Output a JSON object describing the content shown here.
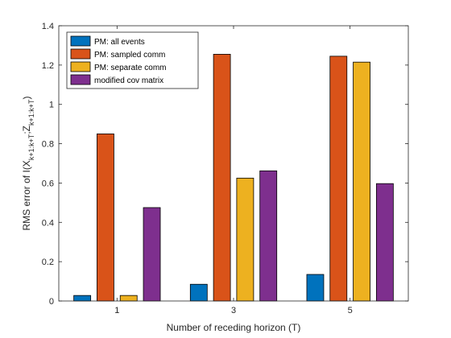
{
  "chart_data": {
    "type": "bar",
    "title": "",
    "xlabel": "Number of receding horizon (T)",
    "ylabel_parts": {
      "prefix": "RMS error of I(X",
      "sub1": "k+1:k+T",
      "mid": ";Z",
      "sub2": "k+1:k+T",
      "suffix": ")"
    },
    "categories": [
      "1",
      "3",
      "5"
    ],
    "ylim": [
      0,
      1.4
    ],
    "yticks": [
      "0",
      "0.2",
      "0.4",
      "0.6",
      "0.8",
      "1",
      "1.2",
      "1.4"
    ],
    "ytick_values": [
      0,
      0.2,
      0.4,
      0.6,
      0.8,
      1.0,
      1.2,
      1.4
    ],
    "grid": false,
    "legend_position": "top-left",
    "series": [
      {
        "name": "PM: all events",
        "color": "#0072BD",
        "values": [
          0.028,
          0.085,
          0.135
        ]
      },
      {
        "name": "PM: sampled comm",
        "color": "#D95319",
        "values": [
          0.85,
          1.255,
          1.245
        ]
      },
      {
        "name": "PM: separate comm",
        "color": "#EDB120",
        "values": [
          0.028,
          0.625,
          1.215
        ]
      },
      {
        "name": "modified cov matrix",
        "color": "#7E2F8E",
        "values": [
          0.475,
          0.662,
          0.597
        ]
      }
    ]
  }
}
